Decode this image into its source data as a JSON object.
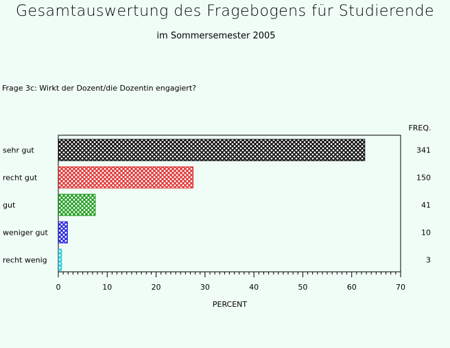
{
  "header": {
    "title": "Gesamtauswertung des Fragebogens für Studierende",
    "subtitle": "im Sommersemester 2005",
    "question": "Frage 3c: Wirkt der Dozent/die Dozentin engagiert?"
  },
  "chart_data": {
    "type": "bar",
    "orientation": "horizontal",
    "categories": [
      "sehr gut",
      "recht gut",
      "gut",
      "weniger gut",
      "recht wenig"
    ],
    "values": [
      62.6,
      27.5,
      7.5,
      1.8,
      0.6
    ],
    "freq": [
      341,
      150,
      41,
      10,
      3
    ],
    "freq_label": "FREQ.",
    "xlabel": "PERCENT",
    "xlim": [
      0,
      70
    ],
    "xticks": [
      0,
      10,
      20,
      30,
      40,
      50,
      60,
      70
    ],
    "colors": [
      "#000000",
      "#e03030",
      "#1a9a1a",
      "#2020e0",
      "#20c8d8"
    ],
    "fill": "cross-hatch",
    "grid": false
  }
}
